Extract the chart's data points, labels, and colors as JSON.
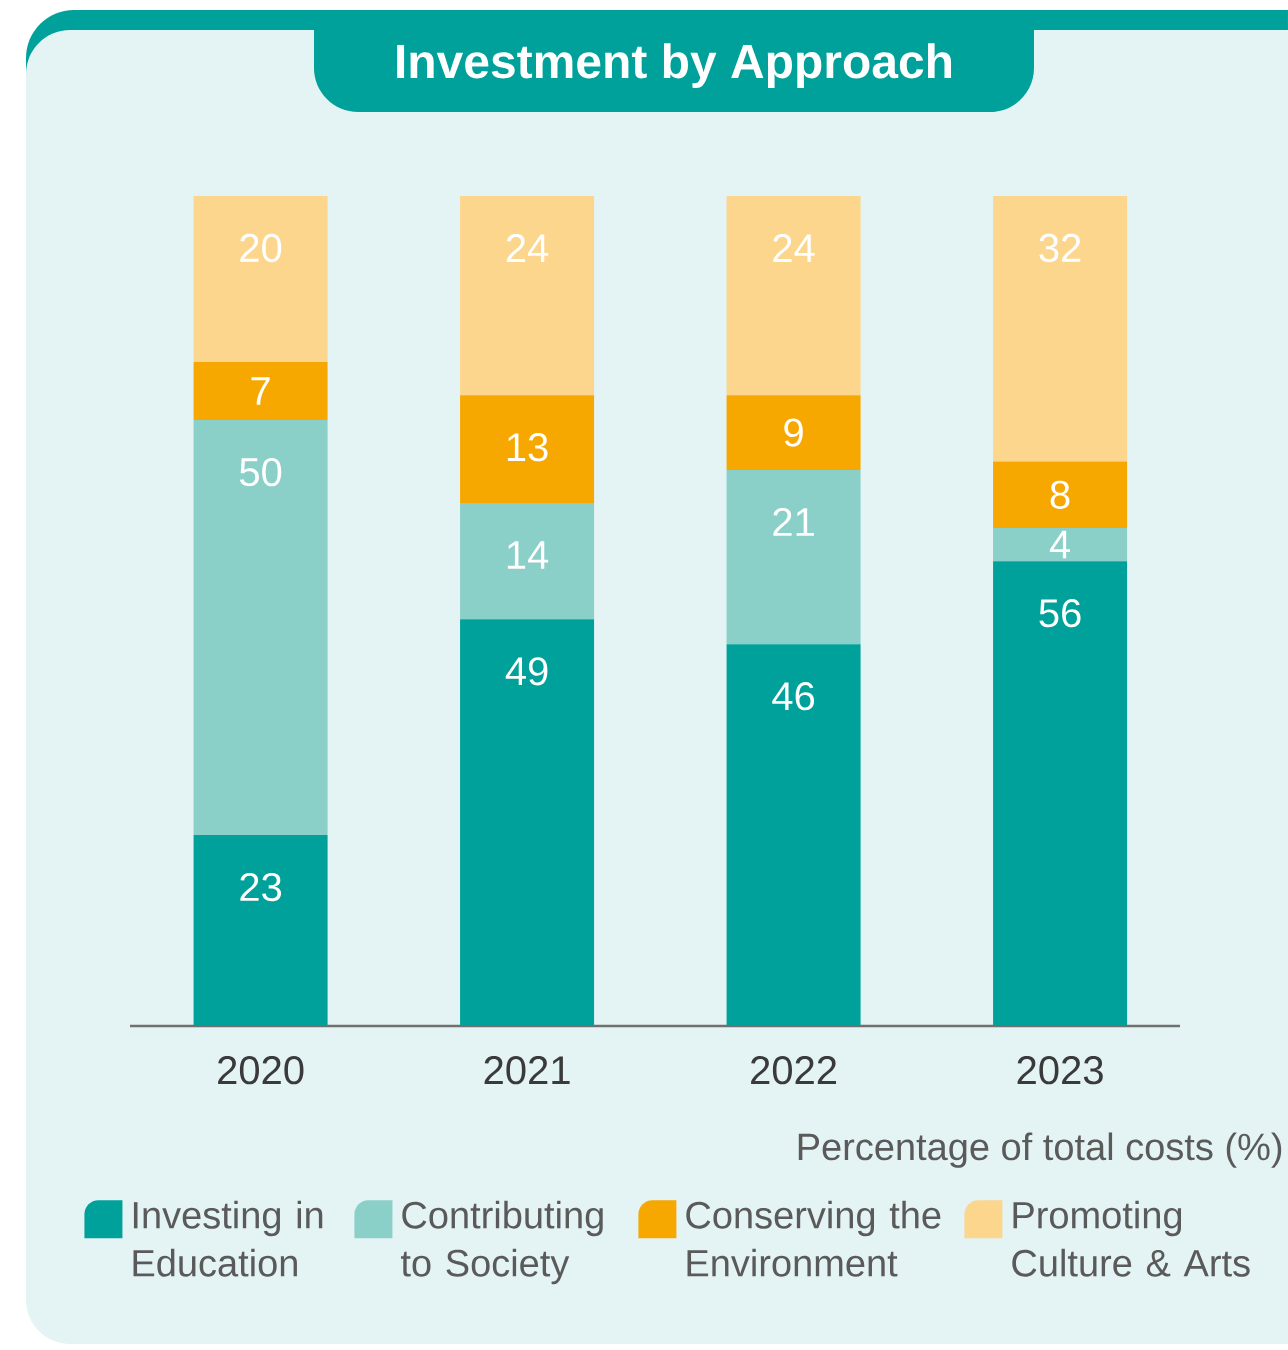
{
  "chart_data": {
    "type": "bar",
    "stacked": true,
    "title": "Investment by Approach",
    "categories": [
      "2020",
      "2021",
      "2022",
      "2023"
    ],
    "series": [
      {
        "name": "Investing in Education",
        "color": "#00a19a",
        "values": [
          23,
          49,
          46,
          56
        ]
      },
      {
        "name": "Contributing to Society",
        "color": "#8bcfc9",
        "values": [
          50,
          14,
          21,
          4
        ]
      },
      {
        "name": "Conserving the Environment",
        "color": "#f6a800",
        "values": [
          7,
          13,
          9,
          8
        ]
      },
      {
        "name": "Promoting Culture & Arts",
        "color": "#fcd68d",
        "values": [
          20,
          24,
          24,
          32
        ]
      }
    ],
    "tick_labels": "x",
    "data_labels": true,
    "legend": "bottom",
    "annotations": [
      "Percentage of total costs (%)"
    ]
  }
}
